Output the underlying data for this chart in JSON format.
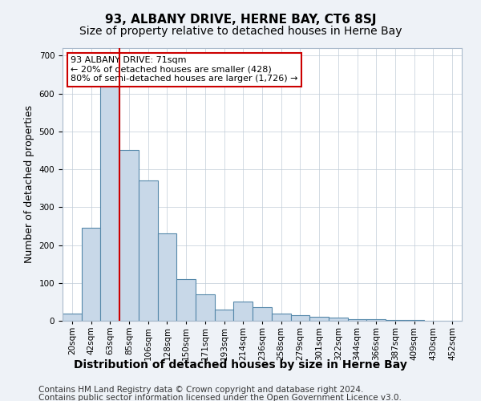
{
  "title": "93, ALBANY DRIVE, HERNE BAY, CT6 8SJ",
  "subtitle": "Size of property relative to detached houses in Herne Bay",
  "xlabel": "Distribution of detached houses by size in Herne Bay",
  "ylabel": "Number of detached properties",
  "annotation_line1": "93 ALBANY DRIVE: 71sqm",
  "annotation_line2": "← 20% of detached houses are smaller (428)",
  "annotation_line3": "80% of semi-detached houses are larger (1,726) →",
  "footer_line1": "Contains HM Land Registry data © Crown copyright and database right 2024.",
  "footer_line2": "Contains public sector information licensed under the Open Government Licence v3.0.",
  "bin_labels": [
    "20sqm",
    "42sqm",
    "63sqm",
    "85sqm",
    "106sqm",
    "128sqm",
    "150sqm",
    "171sqm",
    "193sqm",
    "214sqm",
    "236sqm",
    "258sqm",
    "279sqm",
    "301sqm",
    "322sqm",
    "344sqm",
    "366sqm",
    "387sqm",
    "409sqm",
    "430sqm",
    "452sqm"
  ],
  "bar_heights": [
    20,
    245,
    645,
    450,
    370,
    230,
    110,
    70,
    30,
    50,
    35,
    20,
    15,
    10,
    8,
    5,
    5,
    3,
    2,
    1,
    0
  ],
  "bar_color": "#c8d8e8",
  "bar_edge_color": "#5588aa",
  "red_line_color": "#cc0000",
  "annotation_box_color": "#ffffff",
  "annotation_box_edge_color": "#cc0000",
  "ylim": [
    0,
    720
  ],
  "yticks": [
    0,
    100,
    200,
    300,
    400,
    500,
    600,
    700
  ],
  "background_color": "#eef2f7",
  "plot_background": "#ffffff",
  "title_fontsize": 11,
  "subtitle_fontsize": 10,
  "axis_label_fontsize": 9,
  "tick_fontsize": 7.5,
  "annotation_fontsize": 8,
  "footer_fontsize": 7.5
}
